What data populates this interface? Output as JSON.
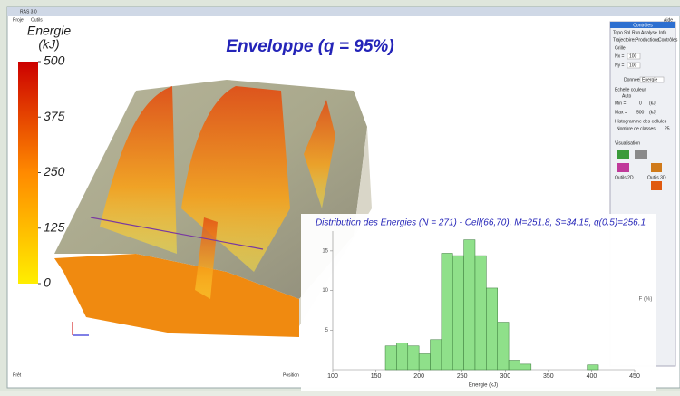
{
  "window": {
    "title": "RAS 3.0",
    "menu": [
      "Projet",
      "Outils"
    ],
    "help": "Aide",
    "status": [
      "Prêt",
      "Position"
    ]
  },
  "panel": {
    "header": "Contrôles",
    "tabs": [
      "Topo",
      "Sol",
      "Run",
      "Analyse",
      "Info"
    ],
    "subtabs": [
      "Trajectoires",
      "Productions",
      "Contrôles"
    ],
    "grid_label": "Grille",
    "nx_label": "Nx =",
    "nx": "100",
    "ny_label": "Ny =",
    "ny": "100",
    "data_label": "Données",
    "data_value": "Energie",
    "scale_label": "Echelle couleur",
    "auto": "Auto",
    "min_label": "Min =",
    "min": "0",
    "max_label": "Max =",
    "max": "500",
    "unit": "(kJ)",
    "hist_label": "Histogramme des cellules",
    "classes_label": "Nombre de classes",
    "classes": "25",
    "visu": "Visualisation",
    "tools2d": "Outils 2D",
    "tools3d": "Outils 3D"
  },
  "scene": {
    "title": "Enveloppe (q = 95%)",
    "colorbar": {
      "label": "Energie",
      "unit": "(kJ)",
      "lim": [
        0,
        500
      ],
      "ticks": [
        500,
        375,
        250,
        125,
        0
      ]
    }
  },
  "chart_data": {
    "type": "histogram",
    "title": "Distribution des Energies (N = 271) - Cell(66,70), M=251.8, S=34.15, q(0.5)=256.1",
    "xlabel": "Energie (kJ)",
    "y2label": "F (%)",
    "color": "#8fe08a",
    "bins": [
      161,
      174,
      187,
      200,
      213,
      226,
      239,
      252,
      265,
      278,
      291,
      304,
      317,
      330,
      343,
      356,
      369,
      382,
      395,
      408
    ],
    "counts": [
      3,
      3.4,
      3,
      2,
      3.8,
      14.7,
      14.4,
      16.4,
      14.4,
      10.3,
      6,
      1.2,
      0.7,
      0,
      0,
      0,
      0,
      0,
      0.6
    ],
    "xlim": [
      100,
      450
    ],
    "xticks": [
      100,
      150,
      200,
      250,
      300,
      350,
      400,
      450
    ],
    "ylim": [
      0,
      17.5
    ],
    "yticks": [
      5,
      10,
      15
    ]
  }
}
